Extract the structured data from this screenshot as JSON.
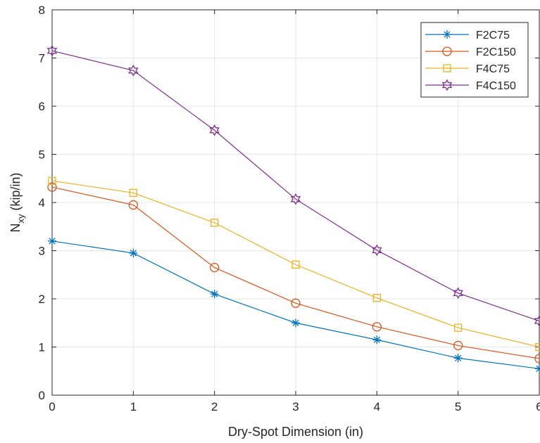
{
  "chart_data": {
    "type": "line",
    "title": "",
    "xlabel": "Dry-Spot Dimension (in)",
    "ylabel": {
      "base": "N",
      "subscript": "xy",
      "rest": " (kip/in)"
    },
    "xlim": [
      0,
      6
    ],
    "ylim": [
      0,
      8
    ],
    "xticks": [
      "0",
      "1",
      "2",
      "3",
      "4",
      "5",
      "6"
    ],
    "yticks": [
      "0",
      "1",
      "2",
      "3",
      "4",
      "5",
      "6",
      "7",
      "8"
    ],
    "grid": true,
    "legend_position": "top-right",
    "x": [
      0,
      1,
      2,
      3,
      4,
      5,
      6
    ],
    "series": [
      {
        "name": "F2C75",
        "color": "#0072BD",
        "marker": "asterisk",
        "values": [
          3.2,
          2.95,
          2.1,
          1.5,
          1.15,
          0.77,
          0.55
        ]
      },
      {
        "name": "F2C150",
        "color": "#D95319",
        "marker": "circle",
        "values": [
          4.32,
          3.95,
          2.65,
          1.91,
          1.42,
          1.03,
          0.76
        ]
      },
      {
        "name": "F4C75",
        "color": "#EDB120",
        "marker": "square",
        "values": [
          4.45,
          4.2,
          3.58,
          2.71,
          2.02,
          1.4,
          1.0
        ]
      },
      {
        "name": "F4C150",
        "color": "#7E2F8E",
        "marker": "hexagram",
        "values": [
          7.15,
          6.74,
          5.5,
          4.07,
          3.01,
          2.12,
          1.54
        ]
      }
    ]
  }
}
